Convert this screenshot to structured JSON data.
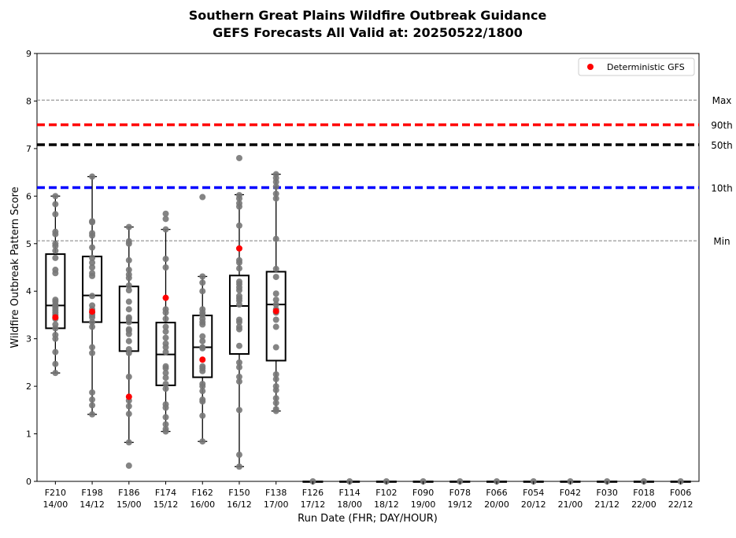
{
  "chart_data": {
    "type": "box",
    "title": "Southern Great Plains Wildfire Outbreak Guidance",
    "subtitle": "GEFS Forecasts All Valid at: 20250522/1800",
    "xlabel": "Run Date (FHR; DAY/HOUR)",
    "ylabel": "Wildfire Outbreak Pattern Score",
    "ylim": [
      0,
      9
    ],
    "yticks": [
      "0",
      "1",
      "2",
      "3",
      "4",
      "5",
      "6",
      "7",
      "8",
      "9"
    ],
    "grid": false,
    "legend": {
      "placement": "top-right",
      "entries": [
        "Deterministic GFS"
      ]
    },
    "colors": {
      "member": "#777777",
      "deterministic": "#ff0000",
      "max": "#808080",
      "p90": "#ff0000",
      "p50": "#000000",
      "p10": "#0000ff",
      "min": "#808080"
    },
    "categories": [
      [
        "F210",
        "14/00"
      ],
      [
        "F198",
        "14/12"
      ],
      [
        "F186",
        "15/00"
      ],
      [
        "F174",
        "15/12"
      ],
      [
        "F162",
        "16/00"
      ],
      [
        "F150",
        "16/12"
      ],
      [
        "F138",
        "17/00"
      ],
      [
        "F126",
        "17/12"
      ],
      [
        "F114",
        "18/00"
      ],
      [
        "F102",
        "18/12"
      ],
      [
        "F090",
        "19/00"
      ],
      [
        "F078",
        "19/12"
      ],
      [
        "F066",
        "20/00"
      ],
      [
        "F054",
        "20/12"
      ],
      [
        "F042",
        "21/00"
      ],
      [
        "F030",
        "21/12"
      ],
      [
        "F018",
        "22/00"
      ],
      [
        "F006",
        "22/12"
      ]
    ],
    "reference_lines": [
      {
        "label": "Max",
        "value": 8.02,
        "style": "dashed-thin"
      },
      {
        "label": "90th",
        "value": 7.5,
        "style": "dashed-thick"
      },
      {
        "label": "50th",
        "value": 7.08,
        "style": "dashed-thick"
      },
      {
        "label": "10th",
        "value": 6.18,
        "style": "dashed-thick"
      },
      {
        "label": "Min",
        "value": 5.06,
        "style": "dashed-thin"
      }
    ],
    "boxes": [
      {
        "q1": 3.22,
        "median": 3.7,
        "q3": 4.78,
        "whisker_low": 2.28,
        "whisker_high": 6.0
      },
      {
        "q1": 3.35,
        "median": 3.91,
        "q3": 4.73,
        "whisker_low": 1.41,
        "whisker_high": 6.41
      },
      {
        "q1": 2.74,
        "median": 3.34,
        "q3": 4.1,
        "whisker_low": 0.82,
        "whisker_high": 5.35
      },
      {
        "q1": 2.02,
        "median": 2.67,
        "q3": 3.34,
        "whisker_low": 1.05,
        "whisker_high": 5.3
      },
      {
        "q1": 2.19,
        "median": 2.82,
        "q3": 3.49,
        "whisker_low": 0.84,
        "whisker_high": 4.31
      },
      {
        "q1": 2.68,
        "median": 3.69,
        "q3": 4.33,
        "whisker_low": 0.31,
        "whisker_high": 6.03
      },
      {
        "q1": 2.54,
        "median": 3.72,
        "q3": 4.41,
        "whisker_low": 1.48,
        "whisker_high": 6.46
      },
      {
        "q1": 0,
        "median": 0,
        "q3": 0,
        "whisker_low": 0,
        "whisker_high": 0
      },
      {
        "q1": 0,
        "median": 0,
        "q3": 0,
        "whisker_low": 0,
        "whisker_high": 0
      },
      {
        "q1": 0,
        "median": 0,
        "q3": 0,
        "whisker_low": 0,
        "whisker_high": 0
      },
      {
        "q1": 0,
        "median": 0,
        "q3": 0,
        "whisker_low": 0,
        "whisker_high": 0
      },
      {
        "q1": 0,
        "median": 0,
        "q3": 0,
        "whisker_low": 0,
        "whisker_high": 0
      },
      {
        "q1": 0,
        "median": 0,
        "q3": 0,
        "whisker_low": 0,
        "whisker_high": 0
      },
      {
        "q1": 0,
        "median": 0,
        "q3": 0,
        "whisker_low": 0,
        "whisker_high": 0
      },
      {
        "q1": 0,
        "median": 0,
        "q3": 0,
        "whisker_low": 0,
        "whisker_high": 0
      },
      {
        "q1": 0,
        "median": 0,
        "q3": 0,
        "whisker_low": 0,
        "whisker_high": 0
      },
      {
        "q1": 0,
        "median": 0,
        "q3": 0,
        "whisker_low": 0,
        "whisker_high": 0
      },
      {
        "q1": 0,
        "median": 0,
        "q3": 0,
        "whisker_low": 0,
        "whisker_high": 0
      }
    ],
    "members": [
      [
        2.28,
        2.47,
        2.72,
        3.0,
        3.08,
        3.22,
        3.3,
        3.42,
        3.5,
        3.55,
        3.6,
        3.65,
        3.7,
        3.72,
        3.78,
        3.82,
        4.38,
        4.45,
        4.7,
        4.85,
        4.95,
        5.0,
        5.2,
        5.25,
        5.62,
        5.83,
        6.0
      ],
      [
        1.41,
        1.6,
        1.72,
        1.87,
        2.7,
        2.82,
        3.25,
        3.35,
        3.45,
        3.5,
        3.55,
        3.62,
        3.7,
        3.9,
        4.32,
        4.38,
        4.5,
        4.6,
        4.7,
        4.92,
        5.17,
        5.22,
        5.45,
        5.47,
        6.41
      ],
      [
        0.33,
        0.82,
        1.42,
        1.58,
        1.7,
        2.2,
        2.7,
        2.78,
        2.95,
        3.1,
        3.17,
        3.2,
        3.35,
        3.42,
        3.45,
        3.62,
        3.78,
        4.02,
        4.12,
        4.28,
        4.35,
        4.45,
        4.65,
        5.0,
        5.05,
        5.35
      ],
      [
        1.05,
        1.1,
        1.2,
        1.35,
        1.55,
        1.62,
        1.95,
        2.05,
        2.18,
        2.28,
        2.38,
        2.42,
        2.72,
        2.82,
        2.9,
        3.02,
        3.15,
        3.25,
        3.42,
        3.55,
        3.62,
        4.5,
        4.68,
        5.3,
        5.52,
        5.63
      ],
      [
        0.84,
        1.38,
        1.68,
        1.72,
        1.9,
        2.0,
        2.05,
        2.32,
        2.38,
        2.42,
        2.8,
        2.82,
        2.95,
        3.05,
        3.3,
        3.35,
        3.42,
        3.5,
        3.55,
        3.62,
        4.0,
        4.18,
        4.31,
        5.98
      ],
      [
        0.31,
        0.56,
        1.5,
        2.1,
        2.2,
        2.4,
        2.5,
        2.85,
        3.2,
        3.25,
        3.35,
        3.4,
        3.72,
        3.8,
        3.85,
        3.9,
        4.02,
        4.08,
        4.15,
        4.2,
        4.48,
        4.6,
        4.65,
        5.38,
        5.78,
        5.85,
        5.95,
        6.02,
        6.8
      ],
      [
        1.48,
        1.52,
        1.65,
        1.75,
        1.92,
        2.0,
        2.15,
        2.25,
        2.82,
        3.25,
        3.4,
        3.55,
        3.62,
        3.72,
        3.82,
        3.95,
        4.3,
        4.47,
        5.1,
        5.95,
        6.05,
        6.2,
        6.3,
        6.38,
        6.46
      ],
      [
        0
      ],
      [
        0
      ],
      [
        0
      ],
      [
        0
      ],
      [
        0
      ],
      [
        0
      ],
      [
        0
      ],
      [
        0
      ],
      [
        0
      ],
      [
        0
      ],
      [
        0
      ]
    ],
    "deterministic": [
      3.45,
      3.57,
      1.78,
      3.86,
      2.56,
      4.9,
      3.58,
      null,
      null,
      null,
      null,
      null,
      null,
      null,
      null,
      null,
      null,
      null
    ]
  }
}
